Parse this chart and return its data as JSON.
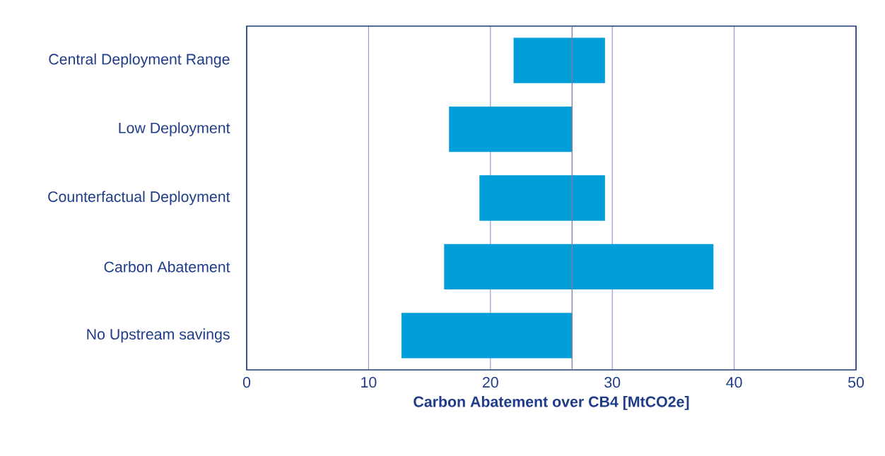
{
  "chart_data": {
    "type": "bar",
    "orientation": "horizontal",
    "xlabel": "Carbon Abatement over CB4 [MtCO2e]",
    "categories": [
      "Central Deployment Range",
      "Low Deployment",
      "Counterfactual Deployment",
      "Carbon Abatement",
      "No Upstream savings"
    ],
    "base": [
      21.9,
      16.6,
      19.1,
      16.2,
      12.7
    ],
    "values": [
      7.5,
      10.1,
      10.3,
      22.1,
      14.0
    ],
    "color": "#009fda",
    "xlim": [
      0,
      50
    ],
    "xticks": [
      0,
      10,
      20,
      30,
      40,
      50
    ],
    "grid": "x",
    "ref_lines": [
      {
        "axis": "x",
        "value": 26.7,
        "color": "#7f7f9f"
      }
    ]
  }
}
